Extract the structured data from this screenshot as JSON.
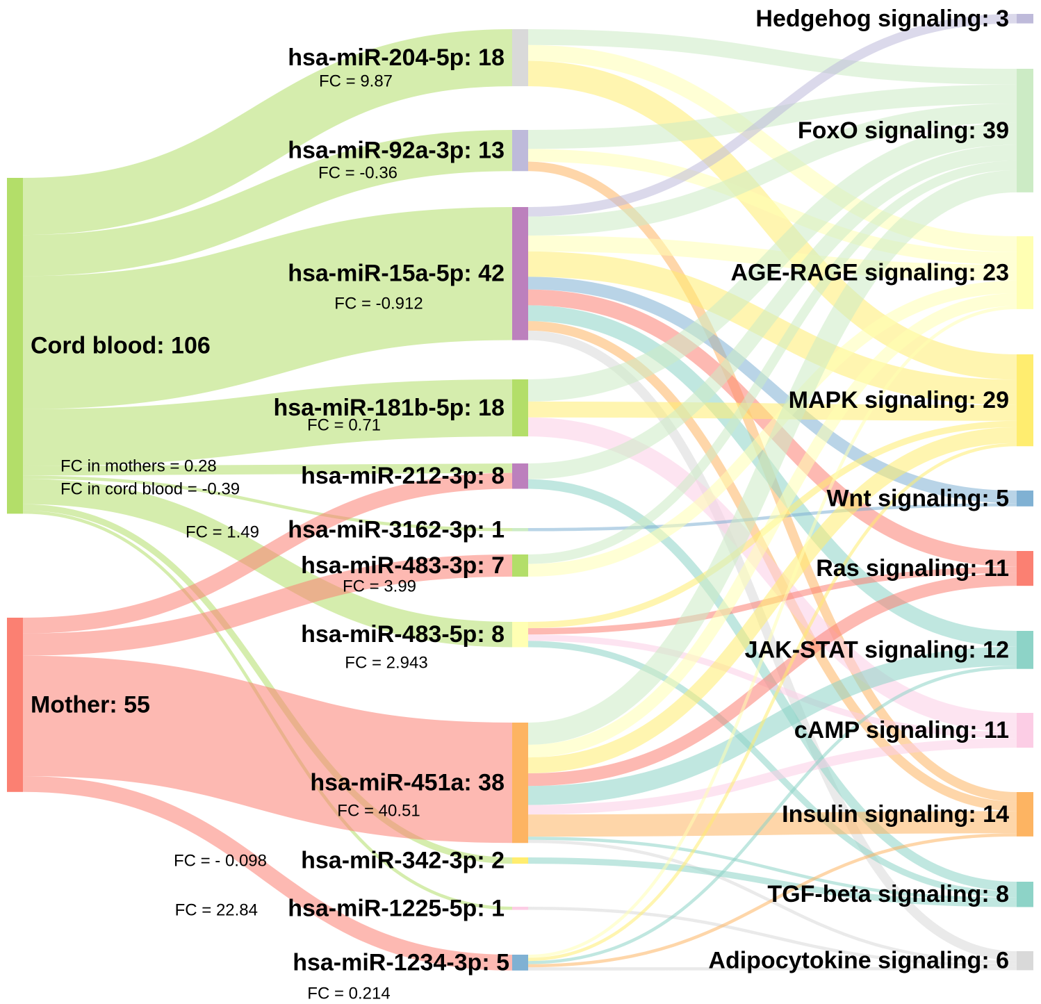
{
  "chart_data": {
    "type": "sankey",
    "nodes": [
      {
        "label": "Cord blood: 106",
        "value": 106,
        "color": "#b3de69"
      },
      {
        "label": "Mother: 55",
        "value": 55,
        "color": "#fb8072"
      },
      {
        "label": "hsa-miR-204-5p: 18",
        "value": 18,
        "color": "#d9d9d9",
        "notes": [
          "FC = 9.87"
        ]
      },
      {
        "label": "hsa-miR-92a-3p: 13",
        "value": 13,
        "color": "#bebada",
        "notes": [
          "FC = -0.36"
        ]
      },
      {
        "label": "hsa-miR-15a-5p: 42",
        "value": 42,
        "color": "#bc80bd",
        "notes": [
          "FC = -0.912"
        ]
      },
      {
        "label": "hsa-miR-181b-5p: 18",
        "value": 18,
        "color": "#b3de69",
        "notes": [
          "FC = 0.71"
        ]
      },
      {
        "label": "hsa-miR-212-3p: 8",
        "value": 8,
        "color": "#bc80bd",
        "notes": [
          "FC in mothers = 0.28",
          "FC in cord blood = -0.39"
        ]
      },
      {
        "label": "hsa-miR-3162-3p: 1",
        "value": 1,
        "color": "#ccebc5",
        "notes": [
          "FC = 1.49"
        ]
      },
      {
        "label": "hsa-miR-483-3p: 7",
        "value": 7,
        "color": "#b3de69",
        "notes": [
          "FC = 3.99"
        ]
      },
      {
        "label": "hsa-miR-483-5p: 8",
        "value": 8,
        "color": "#ffffb3",
        "notes": [
          "FC = 2.943"
        ]
      },
      {
        "label": "hsa-miR-451a: 38",
        "value": 38,
        "color": "#fdb462",
        "notes": [
          "FC = 40.51"
        ]
      },
      {
        "label": "hsa-miR-342-3p: 2",
        "value": 2,
        "color": "#ffed6f",
        "notes": [
          "FC = - 0.098"
        ]
      },
      {
        "label": "hsa-miR-1225-5p: 1",
        "value": 1,
        "color": "#fccde5",
        "notes": [
          "FC = 22.84"
        ]
      },
      {
        "label": "hsa-miR-1234-3p: 5",
        "value": 5,
        "color": "#80b1d3",
        "notes": [
          "FC = 0.214"
        ]
      },
      {
        "label": "Hedgehog signaling: 3",
        "value": 3,
        "color": "#bebada"
      },
      {
        "label": "FoxO signaling: 39",
        "value": 39,
        "color": "#ccebc5"
      },
      {
        "label": "AGE-RAGE signaling: 23",
        "value": 23,
        "color": "#ffffb3"
      },
      {
        "label": "MAPK signaling: 29",
        "value": 29,
        "color": "#ffed6f"
      },
      {
        "label": "Wnt signaling: 5",
        "value": 5,
        "color": "#80b1d3"
      },
      {
        "label": "Ras signaling: 11",
        "value": 11,
        "color": "#fb8072"
      },
      {
        "label": "JAK-STAT signaling: 12",
        "value": 12,
        "color": "#8dd3c7"
      },
      {
        "label": "cAMP signaling: 11",
        "value": 11,
        "color": "#fccde5"
      },
      {
        "label": "Insulin signaling: 14",
        "value": 14,
        "color": "#fdb462"
      },
      {
        "label": "TGF-beta signaling: 8",
        "value": 8,
        "color": "#8dd3c7"
      },
      {
        "label": "Adipocytokine signaling: 6",
        "value": 6,
        "color": "#d9d9d9"
      }
    ],
    "links": [
      {
        "source": 0,
        "target": 2,
        "value": 18
      },
      {
        "source": 0,
        "target": 3,
        "value": 13
      },
      {
        "source": 0,
        "target": 4,
        "value": 42
      },
      {
        "source": 0,
        "target": 5,
        "value": 18
      },
      {
        "source": 0,
        "target": 6,
        "value": 3
      },
      {
        "source": 0,
        "target": 7,
        "value": 1
      },
      {
        "source": 0,
        "target": 9,
        "value": 8
      },
      {
        "source": 0,
        "target": 11,
        "value": 2
      },
      {
        "source": 0,
        "target": 12,
        "value": 1
      },
      {
        "source": 1,
        "target": 6,
        "value": 5
      },
      {
        "source": 1,
        "target": 8,
        "value": 7
      },
      {
        "source": 1,
        "target": 10,
        "value": 38
      },
      {
        "source": 1,
        "target": 13,
        "value": 5
      },
      {
        "source": 2,
        "target": 15,
        "value": 5
      },
      {
        "source": 2,
        "target": 16,
        "value": 5
      },
      {
        "source": 2,
        "target": 17,
        "value": 8
      },
      {
        "source": 3,
        "target": 15,
        "value": 6
      },
      {
        "source": 3,
        "target": 16,
        "value": 4
      },
      {
        "source": 3,
        "target": 22,
        "value": 3
      },
      {
        "source": 4,
        "target": 14,
        "value": 3
      },
      {
        "source": 4,
        "target": 15,
        "value": 6
      },
      {
        "source": 4,
        "target": 16,
        "value": 5
      },
      {
        "source": 4,
        "target": 17,
        "value": 8
      },
      {
        "source": 4,
        "target": 18,
        "value": 4
      },
      {
        "source": 4,
        "target": 19,
        "value": 5
      },
      {
        "source": 4,
        "target": 20,
        "value": 5
      },
      {
        "source": 4,
        "target": 22,
        "value": 3
      },
      {
        "source": 4,
        "target": 24,
        "value": 3
      },
      {
        "source": 5,
        "target": 15,
        "value": 7
      },
      {
        "source": 5,
        "target": 17,
        "value": 5
      },
      {
        "source": 5,
        "target": 21,
        "value": 6
      },
      {
        "source": 6,
        "target": 15,
        "value": 5
      },
      {
        "source": 6,
        "target": 23,
        "value": 3
      },
      {
        "source": 7,
        "target": 18,
        "value": 1
      },
      {
        "source": 8,
        "target": 15,
        "value": 3
      },
      {
        "source": 8,
        "target": 16,
        "value": 4
      },
      {
        "source": 9,
        "target": 17,
        "value": 2
      },
      {
        "source": 9,
        "target": 19,
        "value": 2
      },
      {
        "source": 9,
        "target": 21,
        "value": 2
      },
      {
        "source": 9,
        "target": 23,
        "value": 2
      },
      {
        "source": 10,
        "target": 15,
        "value": 7
      },
      {
        "source": 10,
        "target": 16,
        "value": 4
      },
      {
        "source": 10,
        "target": 17,
        "value": 5
      },
      {
        "source": 10,
        "target": 19,
        "value": 4
      },
      {
        "source": 10,
        "target": 20,
        "value": 6
      },
      {
        "source": 10,
        "target": 21,
        "value": 3
      },
      {
        "source": 10,
        "target": 22,
        "value": 7
      },
      {
        "source": 10,
        "target": 23,
        "value": 1
      },
      {
        "source": 10,
        "target": 24,
        "value": 1
      },
      {
        "source": 11,
        "target": 23,
        "value": 2
      },
      {
        "source": 12,
        "target": 24,
        "value": 1
      },
      {
        "source": 13,
        "target": 16,
        "value": 1
      },
      {
        "source": 13,
        "target": 17,
        "value": 1
      },
      {
        "source": 13,
        "target": 20,
        "value": 1
      },
      {
        "source": 13,
        "target": 22,
        "value": 1
      },
      {
        "source": 13,
        "target": 24,
        "value": 1
      }
    ]
  }
}
